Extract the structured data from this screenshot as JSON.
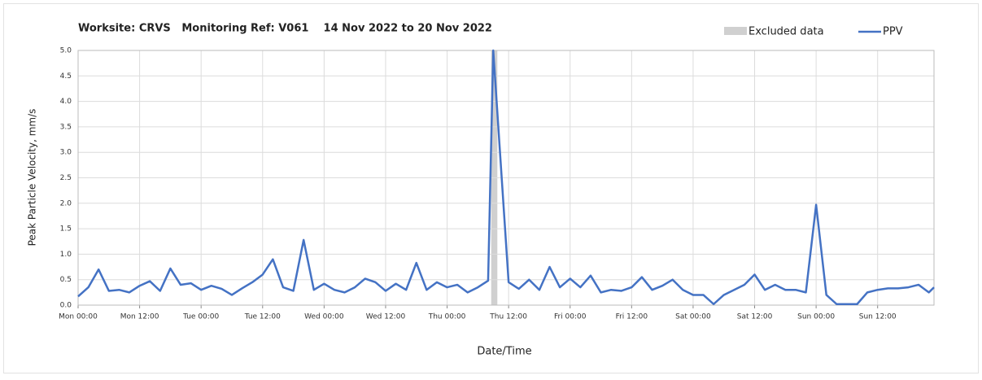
{
  "chart_data": {
    "type": "line",
    "title": "Worksite: CRVS   Monitoring Ref: V061    14 Nov 2022 to 20 Nov 2022",
    "x_label": "Date/Time",
    "y_label": "Peak Particle Velocity, mm/s",
    "x": [
      0,
      2,
      4,
      6,
      8,
      10,
      12,
      14,
      16,
      18,
      20,
      22,
      24,
      26,
      28,
      30,
      32,
      34,
      36,
      38,
      40,
      42,
      44,
      46,
      48,
      50,
      52,
      54,
      56,
      58,
      60,
      62,
      64,
      66,
      68,
      70,
      72,
      74,
      76,
      78,
      80,
      81,
      84,
      86,
      88,
      90,
      92,
      94,
      96,
      98,
      100,
      102,
      104,
      106,
      108,
      110,
      112,
      114,
      116,
      118,
      120,
      122,
      124,
      126,
      128,
      130,
      132,
      134,
      136,
      138,
      140,
      142,
      144,
      146,
      148,
      150,
      152,
      154,
      156,
      158,
      160,
      162,
      164,
      166,
      167
    ],
    "series": [
      {
        "name": "PPV",
        "color": "#4472c4",
        "values": [
          0.17,
          0.35,
          0.7,
          0.28,
          0.3,
          0.25,
          0.38,
          0.47,
          0.28,
          0.72,
          0.4,
          0.43,
          0.3,
          0.38,
          0.32,
          0.2,
          0.33,
          0.45,
          0.6,
          0.9,
          0.35,
          0.28,
          1.28,
          0.3,
          0.42,
          0.3,
          0.25,
          0.35,
          0.52,
          0.45,
          0.28,
          0.42,
          0.3,
          0.83,
          0.3,
          0.45,
          0.35,
          0.4,
          0.25,
          0.35,
          0.48,
          5.0,
          0.45,
          0.32,
          0.5,
          0.3,
          0.75,
          0.35,
          0.52,
          0.35,
          0.58,
          0.25,
          0.3,
          0.28,
          0.35,
          0.55,
          0.3,
          0.38,
          0.5,
          0.3,
          0.2,
          0.2,
          0.02,
          0.2,
          0.3,
          0.4,
          0.6,
          0.3,
          0.4,
          0.3,
          0.3,
          0.25,
          1.97,
          0.2,
          0.02,
          0.02,
          0.02,
          0.25,
          0.3,
          0.33,
          0.33,
          0.35,
          0.4,
          0.25,
          0.35
        ]
      }
    ],
    "excluded": {
      "name": "Excluded data",
      "color": "#d0d0d0",
      "ranges": [
        [
          80.6,
          81.8
        ]
      ]
    },
    "xlim": [
      0,
      167
    ],
    "xticks": [
      {
        "value": 0,
        "label": "Mon 00:00"
      },
      {
        "value": 12,
        "label": "Mon 12:00"
      },
      {
        "value": 24,
        "label": "Tue 00:00"
      },
      {
        "value": 36,
        "label": "Tue 12:00"
      },
      {
        "value": 48,
        "label": "Wed 00:00"
      },
      {
        "value": 60,
        "label": "Wed 12:00"
      },
      {
        "value": 72,
        "label": "Thu 00:00"
      },
      {
        "value": 84,
        "label": "Thu 12:00"
      },
      {
        "value": 96,
        "label": "Fri 00:00"
      },
      {
        "value": 108,
        "label": "Fri 12:00"
      },
      {
        "value": 120,
        "label": "Sat 00:00"
      },
      {
        "value": 132,
        "label": "Sat 12:00"
      },
      {
        "value": 144,
        "label": "Sun 00:00"
      },
      {
        "value": 156,
        "label": "Sun 12:00"
      }
    ],
    "ylim": [
      0,
      5
    ],
    "yticks": [
      {
        "value": 0,
        "label": "0.0"
      },
      {
        "value": 0.5,
        "label": "0.5"
      },
      {
        "value": 1,
        "label": "1.0"
      },
      {
        "value": 1.5,
        "label": "1.5"
      },
      {
        "value": 2,
        "label": "2.0"
      },
      {
        "value": 2.5,
        "label": "2.5"
      },
      {
        "value": 3,
        "label": "3.0"
      },
      {
        "value": 3.5,
        "label": "3.5"
      },
      {
        "value": 4,
        "label": "4.0"
      },
      {
        "value": 4.5,
        "label": "4.5"
      },
      {
        "value": 5,
        "label": "5.0"
      }
    ],
    "grid": true
  }
}
